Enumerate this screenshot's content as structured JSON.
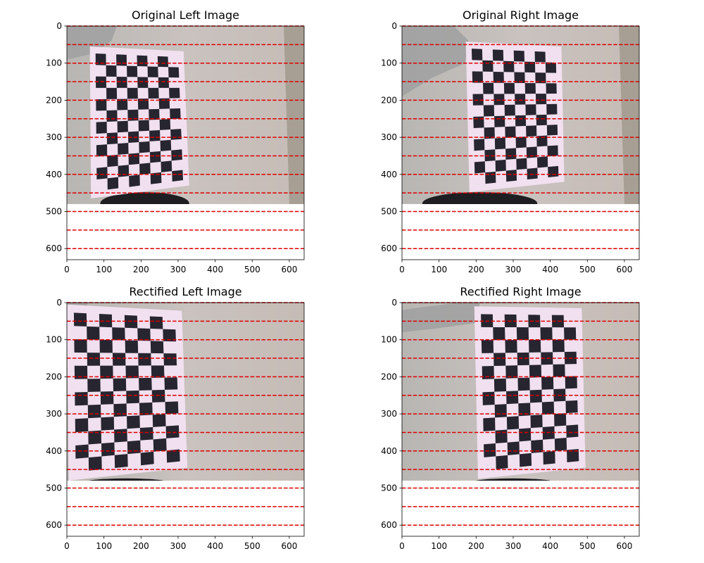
{
  "figure": {
    "panels": [
      {
        "title": "Original Left Image",
        "x_ticks": [
          "0",
          "100",
          "200",
          "300",
          "400",
          "500",
          "600"
        ],
        "y_ticks": [
          "0",
          "100",
          "200",
          "300",
          "400",
          "500",
          "600"
        ],
        "xlim": [
          0,
          640
        ],
        "ylim": [
          0,
          630
        ],
        "image_height": 480,
        "board_corners": [
          [
            62,
            55
          ],
          [
            315,
            68
          ],
          [
            330,
            430
          ],
          [
            65,
            465
          ]
        ],
        "board_grid": [
          8,
          12
        ],
        "scene": "original-left"
      },
      {
        "title": "Original Right Image",
        "x_ticks": [
          "0",
          "100",
          "200",
          "300",
          "400",
          "500",
          "600"
        ],
        "y_ticks": [
          "0",
          "100",
          "200",
          "300",
          "400",
          "500",
          "600"
        ],
        "xlim": [
          0,
          640
        ],
        "ylim": [
          0,
          630
        ],
        "image_height": 480,
        "board_corners": [
          [
            172,
            42
          ],
          [
            430,
            55
          ],
          [
            438,
            420
          ],
          [
            182,
            448
          ]
        ],
        "board_grid": [
          8,
          12
        ],
        "scene": "original-right"
      },
      {
        "title": "Rectified Left Image",
        "x_ticks": [
          "0",
          "100",
          "200",
          "300",
          "400",
          "500",
          "600"
        ],
        "y_ticks": [
          "0",
          "100",
          "200",
          "300",
          "400",
          "500",
          "600"
        ],
        "xlim": [
          0,
          640
        ],
        "ylim": [
          0,
          630
        ],
        "image_height": 480,
        "board_corners": [
          [
            0,
            5
          ],
          [
            310,
            22
          ],
          [
            325,
            445
          ],
          [
            5,
            480
          ]
        ],
        "board_grid": [
          8,
          12
        ],
        "scene": "rectified-left"
      },
      {
        "title": "Rectified Right Image",
        "x_ticks": [
          "0",
          "100",
          "200",
          "300",
          "400",
          "500",
          "600"
        ],
        "y_ticks": [
          "0",
          "100",
          "200",
          "300",
          "400",
          "500",
          "600"
        ],
        "xlim": [
          0,
          640
        ],
        "ylim": [
          0,
          630
        ],
        "image_height": 480,
        "board_corners": [
          [
            195,
            10
          ],
          [
            485,
            15
          ],
          [
            495,
            445
          ],
          [
            205,
            475
          ]
        ],
        "board_grid": [
          8,
          12
        ],
        "scene": "rectified-right"
      }
    ],
    "epipolar_lines_y": [
      0,
      50,
      100,
      150,
      200,
      250,
      300,
      350,
      400,
      450,
      500,
      550,
      600
    ],
    "colors": {
      "epipolar_line": "#dd0000",
      "wall": "#c9c2bf",
      "board_white": "#f1e0ef",
      "board_black": "#262530",
      "sleeve": "#9fa0a0"
    }
  }
}
